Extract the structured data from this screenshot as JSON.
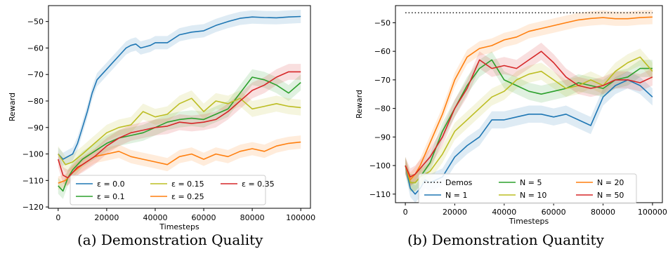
{
  "captions": {
    "a": "(a) Demonstration Quality",
    "b": "(b) Demonstration Quantity"
  },
  "chart_data": [
    {
      "type": "line",
      "xlabel": "Timesteps",
      "ylabel": "Reward",
      "xlim": [
        -4000,
        104000
      ],
      "ylim": [
        -120.5,
        -44
      ],
      "xticks": [
        0,
        20000,
        40000,
        60000,
        80000,
        100000
      ],
      "xtick_labels": [
        "0",
        "20000",
        "40000",
        "60000",
        "80000",
        "100000"
      ],
      "yticks": [
        -120,
        -110,
        -100,
        -90,
        -80,
        -70,
        -60,
        -50
      ],
      "ytick_labels": [
        "−120",
        "−110",
        "−100",
        "−90",
        "−80",
        "−70",
        "−60",
        "−50"
      ],
      "grid": false,
      "shaded_band": true,
      "legend": {
        "position": "lower-center",
        "columns": 3
      },
      "series": [
        {
          "name": "ε = 0.0",
          "color": "#1f77b4",
          "band": 2.5,
          "x": [
            0,
            2000,
            4000,
            6000,
            8000,
            10000,
            12000,
            14000,
            16000,
            18000,
            20000,
            22000,
            24000,
            26000,
            28000,
            30000,
            32000,
            34000,
            36000,
            38000,
            40000,
            45000,
            50000,
            55000,
            60000,
            65000,
            70000,
            75000,
            80000,
            85000,
            90000,
            95000,
            100000
          ],
          "y": [
            -100,
            -102,
            -101,
            -100,
            -96,
            -90,
            -84,
            -77,
            -72,
            -70,
            -68,
            -66,
            -64,
            -62,
            -60,
            -59,
            -58.5,
            -60,
            -59.5,
            -59,
            -58,
            -58,
            -55,
            -54,
            -53.5,
            -51.5,
            -50,
            -48.8,
            -48.3,
            -48.5,
            -48.6,
            -48.3,
            -48.1
          ]
        },
        {
          "name": "ε = 0.1",
          "color": "#2ca02c",
          "band": 3,
          "x": [
            0,
            2000,
            4000,
            6000,
            8000,
            10000,
            15000,
            20000,
            25000,
            30000,
            35000,
            40000,
            45000,
            50000,
            55000,
            60000,
            65000,
            70000,
            75000,
            80000,
            85000,
            90000,
            95000,
            100000
          ],
          "y": [
            -112,
            -114,
            -109,
            -106,
            -104,
            -102,
            -99,
            -96,
            -94,
            -93,
            -92,
            -90,
            -88,
            -87,
            -86.5,
            -87,
            -85,
            -83,
            -77,
            -71,
            -72,
            -74,
            -77,
            -73
          ]
        },
        {
          "name": "ε = 0.15",
          "color": "#bcbd22",
          "band": 3,
          "x": [
            0,
            3000,
            6000,
            10000,
            15000,
            20000,
            25000,
            30000,
            35000,
            40000,
            45000,
            50000,
            55000,
            60000,
            65000,
            70000,
            75000,
            80000,
            85000,
            90000,
            95000,
            100000
          ],
          "y": [
            -100,
            -104,
            -103,
            -100,
            -96,
            -92,
            -90,
            -89,
            -84,
            -86,
            -85,
            -81,
            -79,
            -84,
            -80,
            -81,
            -79,
            -83,
            -82,
            -81,
            -82,
            -82.5
          ]
        },
        {
          "name": "ε = 0.25",
          "color": "#ff7f0e",
          "band": 2.5,
          "x": [
            0,
            3000,
            6000,
            10000,
            15000,
            20000,
            25000,
            30000,
            35000,
            40000,
            45000,
            50000,
            55000,
            60000,
            65000,
            70000,
            75000,
            80000,
            85000,
            90000,
            95000,
            100000
          ],
          "y": [
            -111,
            -110,
            -107,
            -104,
            -101,
            -100,
            -99,
            -101,
            -102,
            -103,
            -104,
            -101,
            -100,
            -102,
            -100,
            -101,
            -99,
            -98,
            -99,
            -97,
            -96,
            -95.5
          ]
        },
        {
          "name": "ε = 0.35",
          "color": "#d62728",
          "band": 3,
          "x": [
            0,
            2000,
            4000,
            6000,
            8000,
            10000,
            15000,
            20000,
            25000,
            30000,
            35000,
            40000,
            45000,
            50000,
            55000,
            60000,
            65000,
            70000,
            75000,
            80000,
            85000,
            90000,
            95000,
            100000
          ],
          "y": [
            -102,
            -108,
            -109,
            -107,
            -105,
            -104,
            -101,
            -97,
            -94,
            -92,
            -91,
            -90,
            -89.5,
            -88,
            -88.5,
            -88,
            -87,
            -84,
            -80,
            -76,
            -74,
            -71,
            -69,
            -69
          ]
        }
      ]
    },
    {
      "type": "line",
      "xlabel": "Timesteps",
      "ylabel": "Reward",
      "xlim": [
        -4000,
        104000
      ],
      "ylim": [
        -113,
        -44
      ],
      "xticks": [
        0,
        20000,
        40000,
        60000,
        80000,
        100000
      ],
      "xtick_labels": [
        "0",
        "20000",
        "40000",
        "60000",
        "80000",
        "100000"
      ],
      "yticks": [
        -110,
        -100,
        -90,
        -80,
        -70,
        -60,
        -50
      ],
      "ytick_labels": [
        "−110",
        "−100",
        "−90",
        "−80",
        "−70",
        "−60",
        "−50"
      ],
      "grid": false,
      "shaded_band": true,
      "legend": {
        "position": "lower-center",
        "columns": 3
      },
      "series": [
        {
          "name": "Demos",
          "color": "#000000",
          "style": "dotted",
          "band": 0,
          "x": [
            0,
            100000
          ],
          "y": [
            -46.5,
            -46.5
          ]
        },
        {
          "name": "N = 1",
          "color": "#1f77b4",
          "band": 3,
          "x": [
            0,
            2000,
            4000,
            6000,
            8000,
            10000,
            15000,
            20000,
            25000,
            30000,
            35000,
            40000,
            45000,
            50000,
            55000,
            60000,
            65000,
            70000,
            75000,
            80000,
            85000,
            90000,
            95000,
            100000
          ],
          "y": [
            -100,
            -108,
            -110,
            -108,
            -105,
            -106,
            -104,
            -97,
            -93,
            -90,
            -84,
            -84,
            -83,
            -82,
            -82,
            -83,
            -82,
            -84,
            -86,
            -76,
            -72,
            -70,
            -72,
            -76
          ]
        },
        {
          "name": "N = 5",
          "color": "#2ca02c",
          "band": 3,
          "x": [
            0,
            2000,
            4000,
            6000,
            10000,
            15000,
            20000,
            25000,
            30000,
            35000,
            40000,
            45000,
            50000,
            55000,
            60000,
            65000,
            70000,
            75000,
            80000,
            85000,
            90000,
            95000,
            100000
          ],
          "y": [
            -100,
            -106,
            -106,
            -104,
            -99,
            -88,
            -80,
            -72,
            -66,
            -63,
            -70,
            -72,
            -74,
            -75,
            -74,
            -73,
            -71,
            -72,
            -73,
            -70,
            -69,
            -66,
            -66
          ]
        },
        {
          "name": "N = 10",
          "color": "#bcbd22",
          "band": 3,
          "x": [
            0,
            2000,
            4000,
            6000,
            10000,
            15000,
            20000,
            25000,
            30000,
            35000,
            40000,
            45000,
            50000,
            55000,
            60000,
            65000,
            70000,
            75000,
            80000,
            85000,
            90000,
            95000,
            100000
          ],
          "y": [
            -100,
            -106,
            -106,
            -104,
            -102,
            -96,
            -88,
            -84,
            -80,
            -76,
            -74,
            -70,
            -68,
            -67,
            -70,
            -73,
            -72,
            -70,
            -72,
            -67,
            -64,
            -62,
            -67
          ]
        },
        {
          "name": "N = 20",
          "color": "#ff7f0e",
          "band": 2.5,
          "x": [
            0,
            2000,
            4000,
            6000,
            10000,
            15000,
            20000,
            25000,
            30000,
            35000,
            40000,
            45000,
            50000,
            55000,
            60000,
            65000,
            70000,
            75000,
            80000,
            85000,
            90000,
            95000,
            100000
          ],
          "y": [
            -100,
            -105,
            -103,
            -100,
            -92,
            -82,
            -70,
            -62,
            -59,
            -58,
            -56,
            -55,
            -53,
            -52,
            -51,
            -50,
            -49,
            -48.5,
            -48.2,
            -48.6,
            -48.6,
            -48.2,
            -48
          ]
        },
        {
          "name": "N = 50",
          "color": "#d62728",
          "band": 3,
          "x": [
            0,
            2000,
            4000,
            6000,
            10000,
            15000,
            20000,
            25000,
            30000,
            35000,
            40000,
            45000,
            50000,
            55000,
            60000,
            65000,
            70000,
            75000,
            80000,
            85000,
            90000,
            95000,
            100000
          ],
          "y": [
            -100,
            -104,
            -103,
            -101,
            -97,
            -90,
            -80,
            -73,
            -63,
            -66,
            -65,
            -66,
            -63,
            -60,
            -64,
            -69,
            -72,
            -73,
            -72,
            -70,
            -70,
            -71,
            -69
          ]
        }
      ]
    }
  ]
}
